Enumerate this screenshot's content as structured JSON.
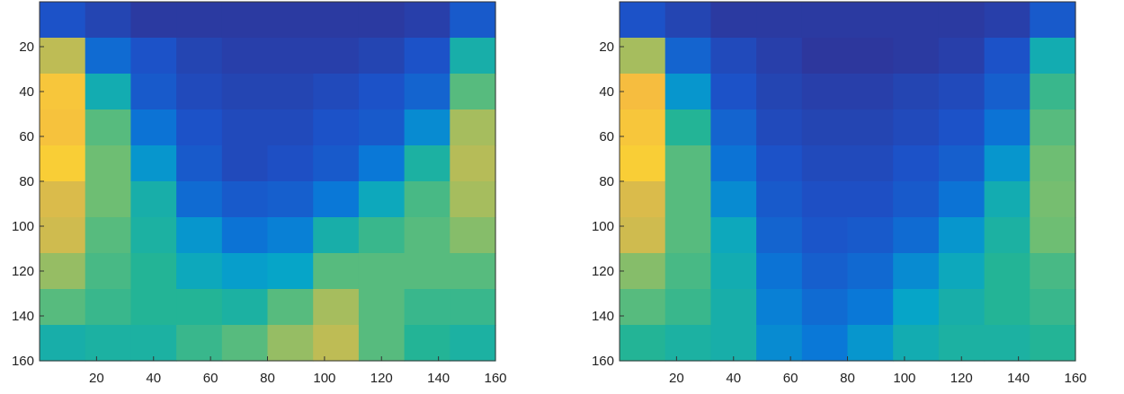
{
  "chart_data": [
    {
      "type": "heatmap",
      "x_ticks": [
        "20",
        "40",
        "60",
        "80",
        "100",
        "120",
        "140",
        "160"
      ],
      "y_ticks": [
        "20",
        "40",
        "60",
        "80",
        "100",
        "120",
        "140",
        "160"
      ],
      "xlim": [
        0,
        160
      ],
      "ylim": [
        0,
        160
      ],
      "grid": "10x10",
      "colormap": "parula",
      "values": [
        [
          0.15,
          0.1,
          0.06,
          0.06,
          0.06,
          0.06,
          0.06,
          0.06,
          0.08,
          0.18
        ],
        [
          0.75,
          0.25,
          0.15,
          0.1,
          0.08,
          0.08,
          0.08,
          0.1,
          0.15,
          0.5
        ],
        [
          0.88,
          0.48,
          0.18,
          0.12,
          0.1,
          0.1,
          0.12,
          0.15,
          0.22,
          0.62
        ],
        [
          0.87,
          0.62,
          0.28,
          0.15,
          0.12,
          0.12,
          0.15,
          0.18,
          0.35,
          0.72
        ],
        [
          0.9,
          0.65,
          0.38,
          0.18,
          0.12,
          0.14,
          0.18,
          0.3,
          0.52,
          0.74
        ],
        [
          0.8,
          0.65,
          0.5,
          0.25,
          0.18,
          0.2,
          0.3,
          0.45,
          0.6,
          0.72
        ],
        [
          0.78,
          0.62,
          0.52,
          0.38,
          0.28,
          0.32,
          0.5,
          0.58,
          0.62,
          0.68
        ],
        [
          0.7,
          0.6,
          0.55,
          0.45,
          0.4,
          0.42,
          0.62,
          0.62,
          0.62,
          0.62
        ],
        [
          0.62,
          0.58,
          0.55,
          0.55,
          0.52,
          0.62,
          0.72,
          0.62,
          0.58,
          0.58
        ],
        [
          0.5,
          0.52,
          0.52,
          0.58,
          0.62,
          0.7,
          0.75,
          0.62,
          0.55,
          0.52
        ]
      ]
    },
    {
      "type": "heatmap",
      "x_ticks": [
        "20",
        "40",
        "60",
        "80",
        "100",
        "120",
        "140",
        "160"
      ],
      "y_ticks": [
        "20",
        "40",
        "60",
        "80",
        "100",
        "120",
        "140",
        "160"
      ],
      "xlim": [
        0,
        160
      ],
      "ylim": [
        0,
        160
      ],
      "grid": "10x10",
      "colormap": "parula",
      "values": [
        [
          0.15,
          0.1,
          0.06,
          0.06,
          0.06,
          0.06,
          0.06,
          0.06,
          0.08,
          0.18
        ],
        [
          0.72,
          0.22,
          0.12,
          0.08,
          0.05,
          0.05,
          0.06,
          0.08,
          0.15,
          0.48
        ],
        [
          0.86,
          0.38,
          0.15,
          0.1,
          0.08,
          0.08,
          0.1,
          0.12,
          0.2,
          0.58
        ],
        [
          0.88,
          0.55,
          0.22,
          0.12,
          0.1,
          0.1,
          0.12,
          0.15,
          0.28,
          0.62
        ],
        [
          0.9,
          0.62,
          0.28,
          0.15,
          0.12,
          0.12,
          0.15,
          0.2,
          0.38,
          0.65
        ],
        [
          0.8,
          0.62,
          0.35,
          0.18,
          0.14,
          0.14,
          0.18,
          0.28,
          0.48,
          0.66
        ],
        [
          0.78,
          0.62,
          0.45,
          0.22,
          0.16,
          0.18,
          0.25,
          0.38,
          0.52,
          0.65
        ],
        [
          0.68,
          0.6,
          0.48,
          0.28,
          0.2,
          0.24,
          0.35,
          0.45,
          0.55,
          0.6
        ],
        [
          0.62,
          0.58,
          0.5,
          0.32,
          0.25,
          0.3,
          0.42,
          0.5,
          0.55,
          0.58
        ],
        [
          0.55,
          0.52,
          0.5,
          0.35,
          0.3,
          0.38,
          0.48,
          0.52,
          0.52,
          0.55
        ]
      ]
    }
  ]
}
